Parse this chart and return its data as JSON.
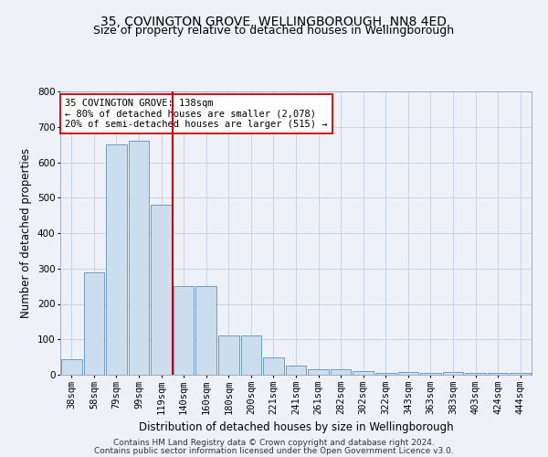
{
  "title1": "35, COVINGTON GROVE, WELLINGBOROUGH, NN8 4ED",
  "title2": "Size of property relative to detached houses in Wellingborough",
  "xlabel": "Distribution of detached houses by size in Wellingborough",
  "ylabel": "Number of detached properties",
  "categories": [
    "38sqm",
    "58sqm",
    "79sqm",
    "99sqm",
    "119sqm",
    "140sqm",
    "160sqm",
    "180sqm",
    "200sqm",
    "221sqm",
    "241sqm",
    "261sqm",
    "282sqm",
    "302sqm",
    "322sqm",
    "343sqm",
    "363sqm",
    "383sqm",
    "403sqm",
    "424sqm",
    "444sqm"
  ],
  "values": [
    45,
    290,
    650,
    660,
    480,
    250,
    250,
    110,
    110,
    50,
    25,
    15,
    15,
    10,
    5,
    8,
    5,
    8,
    5,
    5,
    5
  ],
  "bar_color": "#ccdded",
  "bar_edge_color": "#6090b8",
  "vline_x_index": 5,
  "vline_color": "#cc0000",
  "annotation_text": "35 COVINGTON GROVE: 138sqm\n← 80% of detached houses are smaller (2,078)\n20% of semi-detached houses are larger (515) →",
  "annotation_box_facecolor": "#ffffff",
  "annotation_box_edge": "#cc0000",
  "ylim": [
    0,
    800
  ],
  "yticks": [
    0,
    100,
    200,
    300,
    400,
    500,
    600,
    700,
    800
  ],
  "grid_color": "#c8d4e4",
  "footnote1": "Contains HM Land Registry data © Crown copyright and database right 2024.",
  "footnote2": "Contains public sector information licensed under the Open Government Licence v3.0.",
  "title1_fontsize": 10,
  "title2_fontsize": 9,
  "xlabel_fontsize": 8.5,
  "ylabel_fontsize": 8.5,
  "tick_fontsize": 7.5,
  "annotation_fontsize": 7.5,
  "footnote_fontsize": 6.5,
  "background_color": "#eef2f8"
}
